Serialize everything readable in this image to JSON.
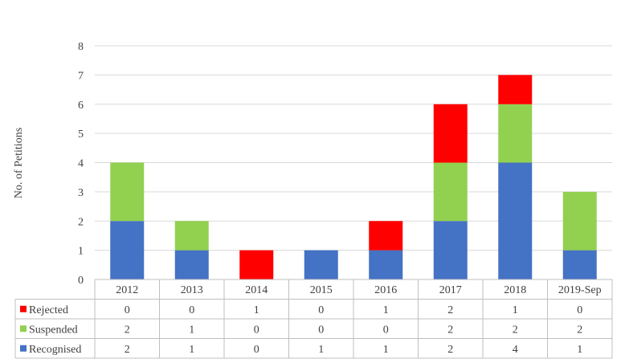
{
  "chart_data": {
    "type": "bar",
    "stacked": true,
    "ylabel": "No. of Petitions",
    "ylim": [
      0,
      8
    ],
    "yticks": [
      "0",
      "1",
      "2",
      "3",
      "4",
      "5",
      "6",
      "7",
      "8"
    ],
    "grid": true,
    "legend": "data-table-left",
    "categories": [
      "2012",
      "2013",
      "2014",
      "2015",
      "2016",
      "2017",
      "2018",
      "2019-Sep"
    ],
    "series": [
      {
        "name": "Recognised",
        "color": "#4472C4",
        "values": [
          2,
          1,
          0,
          1,
          1,
          2,
          4,
          1
        ]
      },
      {
        "name": "Suspended",
        "color": "#92D050",
        "values": [
          2,
          1,
          0,
          0,
          0,
          2,
          2,
          2
        ]
      },
      {
        "name": "Rejected",
        "color": "#FF0000",
        "values": [
          0,
          0,
          1,
          0,
          1,
          2,
          1,
          0
        ]
      }
    ],
    "table_rows": [
      "Rejected",
      "Suspended",
      "Recognised"
    ]
  }
}
